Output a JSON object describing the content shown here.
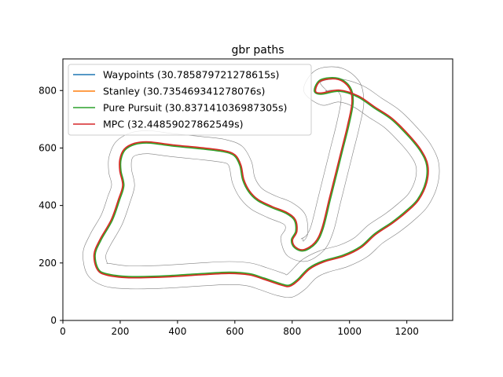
{
  "chart_data": {
    "type": "line",
    "title": "gbr paths",
    "xlabel": "",
    "ylabel": "",
    "xlim": [
      0,
      1360
    ],
    "ylim": [
      0,
      910
    ],
    "x_ticks": [
      0,
      200,
      400,
      600,
      800,
      1000,
      1200
    ],
    "y_ticks": [
      0,
      200,
      400,
      600,
      800
    ],
    "legend_position": "top-left",
    "grid": false,
    "series": [
      {
        "name": "Waypoints (30.785879721278615s)",
        "color": "#1f77b4"
      },
      {
        "name": "Stanley (30.735469341278076s)",
        "color": "#ff7f0e"
      },
      {
        "name": "Pure Pursuit (30.837141036987305s)",
        "color": "#2ca02c"
      },
      {
        "name": "MPC (32.44859027862549s)",
        "color": "#d62728"
      }
    ],
    "track_color": "#808080",
    "centerline": [
      [
        900,
        835
      ],
      [
        960,
        840
      ],
      [
        1000,
        810
      ],
      [
        1010,
        760
      ],
      [
        995,
        680
      ],
      [
        975,
        600
      ],
      [
        955,
        520
      ],
      [
        930,
        420
      ],
      [
        905,
        320
      ],
      [
        880,
        270
      ],
      [
        840,
        245
      ],
      [
        810,
        255
      ],
      [
        800,
        280
      ],
      [
        815,
        310
      ],
      [
        810,
        350
      ],
      [
        780,
        375
      ],
      [
        730,
        395
      ],
      [
        680,
        420
      ],
      [
        650,
        450
      ],
      [
        630,
        490
      ],
      [
        620,
        540
      ],
      [
        600,
        575
      ],
      [
        560,
        590
      ],
      [
        480,
        600
      ],
      [
        380,
        610
      ],
      [
        300,
        620
      ],
      [
        250,
        615
      ],
      [
        215,
        595
      ],
      [
        200,
        560
      ],
      [
        200,
        520
      ],
      [
        210,
        470
      ],
      [
        195,
        420
      ],
      [
        170,
        350
      ],
      [
        130,
        280
      ],
      [
        110,
        230
      ],
      [
        120,
        180
      ],
      [
        150,
        160
      ],
      [
        230,
        150
      ],
      [
        350,
        152
      ],
      [
        480,
        160
      ],
      [
        580,
        165
      ],
      [
        650,
        160
      ],
      [
        700,
        145
      ],
      [
        760,
        125
      ],
      [
        790,
        120
      ],
      [
        820,
        140
      ],
      [
        860,
        180
      ],
      [
        910,
        205
      ],
      [
        980,
        225
      ],
      [
        1040,
        255
      ],
      [
        1090,
        300
      ],
      [
        1150,
        340
      ],
      [
        1200,
        380
      ],
      [
        1240,
        420
      ],
      [
        1268,
        480
      ],
      [
        1272,
        540
      ],
      [
        1250,
        590
      ],
      [
        1210,
        640
      ],
      [
        1150,
        700
      ],
      [
        1090,
        740
      ],
      [
        1030,
        780
      ],
      [
        965,
        800
      ],
      [
        900,
        790
      ],
      [
        880,
        800
      ]
    ],
    "track_half_width": 40
  }
}
